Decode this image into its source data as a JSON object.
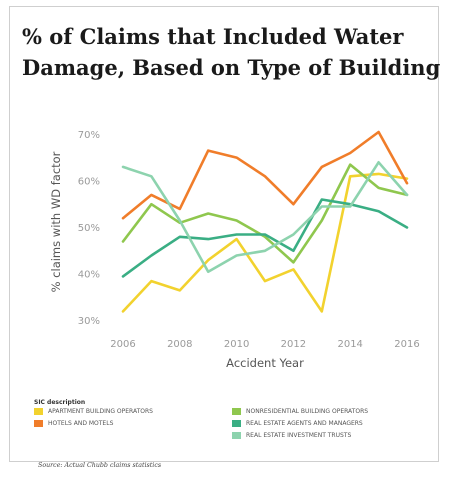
{
  "title_lines": [
    "% of Claims that Included Water",
    "Damage, Based on Type of Building"
  ],
  "source": "Source: Actual Chubb claims statistics",
  "legend_title": "SIC description",
  "chart_data": {
    "type": "line",
    "xlabel": "Accident Year",
    "ylabel": "% claims with WD factor",
    "x": [
      2006,
      2007,
      2008,
      2009,
      2010,
      2011,
      2012,
      2013,
      2014,
      2015,
      2016
    ],
    "x_ticks": [
      2006,
      2008,
      2010,
      2012,
      2014,
      2016
    ],
    "x_tick_labels": [
      "2006",
      "2008",
      "2010",
      "2012",
      "2014",
      "2016"
    ],
    "y_ticks": [
      30,
      40,
      50,
      60,
      70
    ],
    "y_tick_labels": [
      "30%",
      "40%",
      "50%",
      "60%",
      "70%"
    ],
    "xlim": [
      2006,
      2016
    ],
    "ylim": [
      28,
      72
    ],
    "grid": false,
    "legend_position": "bottom",
    "series": [
      {
        "name": "APARTMENT BUILDING OPERATORS",
        "color": "#f2d22e",
        "values": [
          32,
          38.5,
          36.5,
          43,
          47.5,
          38.5,
          41,
          32,
          61,
          61.5,
          60.5
        ]
      },
      {
        "name": "HOTELS AND MOTELS",
        "color": "#f07d2a",
        "values": [
          52,
          57,
          54,
          66.5,
          65,
          61,
          55,
          63,
          66,
          70.5,
          59.5
        ]
      },
      {
        "name": "NONRESIDENTIAL BUILDING OPERATORS",
        "color": "#8fc74e",
        "values": [
          47,
          55,
          51,
          53,
          51.5,
          48,
          42.5,
          51.5,
          63.5,
          58.5,
          57
        ]
      },
      {
        "name": "REAL ESTATE AGENTS AND MANAGERS",
        "color": "#3aae84",
        "values": [
          39.5,
          44,
          48,
          47.5,
          48.5,
          48.5,
          45,
          56,
          55,
          53.5,
          50
        ]
      },
      {
        "name": "REAL ESTATE INVESTMENT TRUSTS",
        "color": "#8dd3ae",
        "values": [
          63,
          61,
          51.5,
          40.5,
          44,
          45,
          48.5,
          54.5,
          54.5,
          64,
          57
        ]
      }
    ]
  }
}
